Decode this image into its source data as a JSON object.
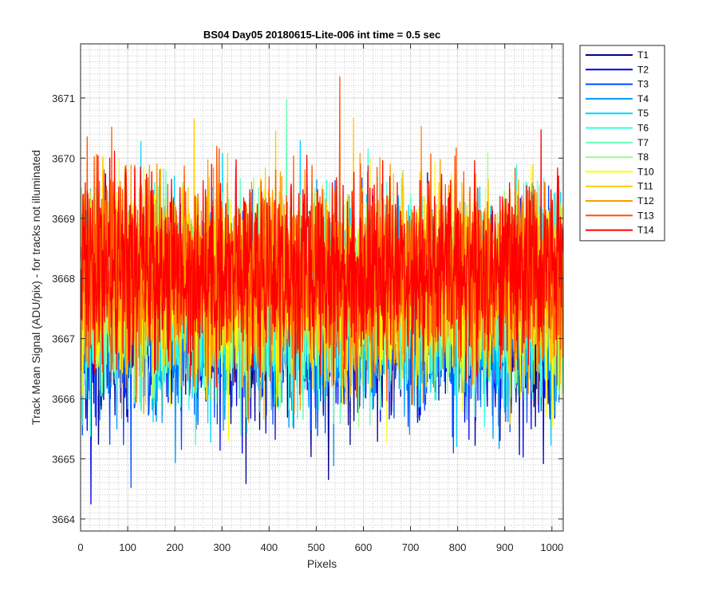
{
  "chart_data": {
    "type": "line",
    "title": "BS04 Day05 20180615-Lite-006 int time = 0.5 sec",
    "xlabel": "Pixels",
    "ylabel": "Track Mean Signal (ADU/pix) - for tracks not illuminated",
    "xlim": [
      0,
      1024
    ],
    "ylim": [
      3663.8,
      3671.9
    ],
    "xticks": [
      0,
      100,
      200,
      300,
      400,
      500,
      600,
      700,
      800,
      900,
      1000
    ],
    "yticks": [
      3664,
      3665,
      3666,
      3667,
      3668,
      3669,
      3670,
      3671
    ],
    "grid": true,
    "minor_grid": true,
    "legend_position": "outside-top-right",
    "series_mean": 3667.7,
    "series_spread": 0.9,
    "num_points": 1024,
    "series": [
      {
        "name": "T1",
        "color": "#00008f"
      },
      {
        "name": "T2",
        "color": "#0000ee"
      },
      {
        "name": "T3",
        "color": "#004cff"
      },
      {
        "name": "T4",
        "color": "#0099ff"
      },
      {
        "name": "T5",
        "color": "#00d5ff"
      },
      {
        "name": "T6",
        "color": "#33ffe0"
      },
      {
        "name": "T7",
        "color": "#66ffbb"
      },
      {
        "name": "T8",
        "color": "#99ff88"
      },
      {
        "name": "T10",
        "color": "#ffff00"
      },
      {
        "name": "T11",
        "color": "#ffcc00"
      },
      {
        "name": "T12",
        "color": "#ff9900"
      },
      {
        "name": "T13",
        "color": "#ff5500"
      },
      {
        "name": "T14",
        "color": "#ff0000"
      }
    ]
  }
}
